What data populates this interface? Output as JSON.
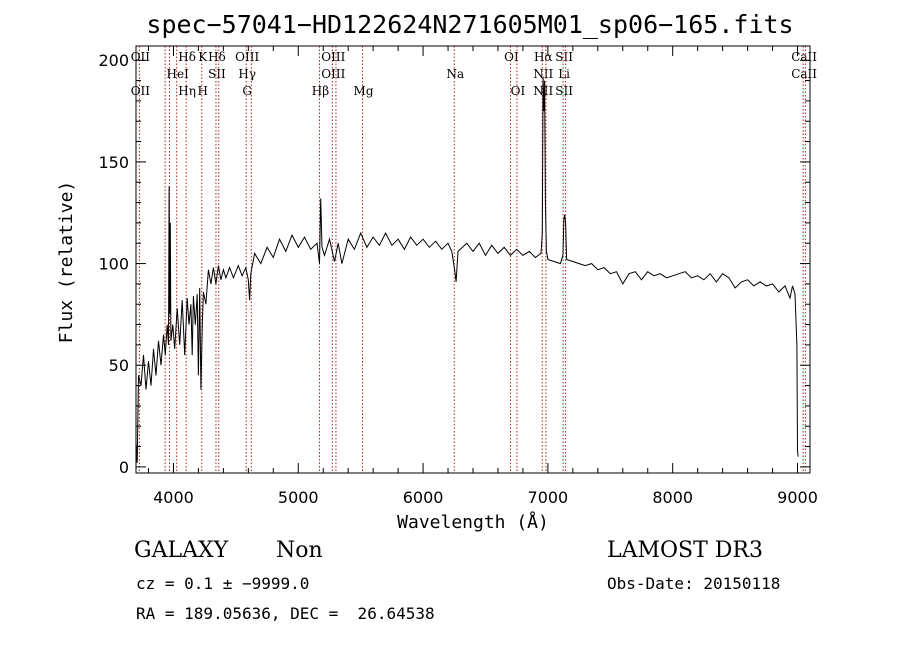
{
  "chart_data": {
    "type": "line",
    "title": "spec−57041−HD122624N271605M01_sp06−165.fits",
    "xlabel": "Wavelength (Å)",
    "ylabel": "Flux (relative)",
    "xlim": [
      3700,
      9100
    ],
    "ylim": [
      -3,
      207
    ],
    "xticks": [
      4000,
      5000,
      6000,
      7000,
      8000,
      9000
    ],
    "yticks": [
      0,
      50,
      100,
      150,
      200
    ],
    "grid": false,
    "series": [
      {
        "color": "#000000",
        "points": [
          [
            3700,
            12
          ],
          [
            3710,
            2
          ],
          [
            3720,
            45
          ],
          [
            3740,
            40
          ],
          [
            3760,
            55
          ],
          [
            3780,
            38
          ],
          [
            3800,
            52
          ],
          [
            3820,
            40
          ],
          [
            3840,
            58
          ],
          [
            3860,
            45
          ],
          [
            3880,
            62
          ],
          [
            3900,
            50
          ],
          [
            3920,
            65
          ],
          [
            3935,
            55
          ],
          [
            3950,
            70
          ],
          [
            3960,
            60
          ],
          [
            3965,
            138
          ],
          [
            3970,
            75
          ],
          [
            3975,
            120
          ],
          [
            3980,
            62
          ],
          [
            3995,
            70
          ],
          [
            4010,
            58
          ],
          [
            4030,
            78
          ],
          [
            4050,
            60
          ],
          [
            4070,
            82
          ],
          [
            4090,
            55
          ],
          [
            4110,
            83
          ],
          [
            4125,
            70
          ],
          [
            4140,
            80
          ],
          [
            4150,
            55
          ],
          [
            4160,
            84
          ],
          [
            4175,
            70
          ],
          [
            4190,
            85
          ],
          [
            4200,
            45
          ],
          [
            4210,
            88
          ],
          [
            4220,
            38
          ],
          [
            4232,
            72
          ],
          [
            4240,
            86
          ],
          [
            4260,
            80
          ],
          [
            4280,
            97
          ],
          [
            4300,
            90
          ],
          [
            4320,
            98
          ],
          [
            4340,
            90
          ],
          [
            4360,
            99
          ],
          [
            4380,
            92
          ],
          [
            4400,
            97
          ],
          [
            4420,
            93
          ],
          [
            4450,
            98
          ],
          [
            4480,
            93
          ],
          [
            4520,
            99
          ],
          [
            4550,
            94
          ],
          [
            4580,
            98
          ],
          [
            4600,
            92
          ],
          [
            4610,
            82
          ],
          [
            4620,
            95
          ],
          [
            4650,
            105
          ],
          [
            4700,
            100
          ],
          [
            4750,
            108
          ],
          [
            4800,
            103
          ],
          [
            4850,
            112
          ],
          [
            4900,
            106
          ],
          [
            4950,
            114
          ],
          [
            5000,
            108
          ],
          [
            5050,
            113
          ],
          [
            5100,
            107
          ],
          [
            5150,
            110
          ],
          [
            5170,
            100
          ],
          [
            5180,
            132
          ],
          [
            5190,
            108
          ],
          [
            5210,
            104
          ],
          [
            5250,
            112
          ],
          [
            5290,
            101
          ],
          [
            5320,
            110
          ],
          [
            5350,
            100
          ],
          [
            5400,
            112
          ],
          [
            5450,
            107
          ],
          [
            5500,
            115
          ],
          [
            5550,
            108
          ],
          [
            5600,
            113
          ],
          [
            5650,
            109
          ],
          [
            5700,
            115
          ],
          [
            5750,
            109
          ],
          [
            5800,
            112
          ],
          [
            5850,
            107
          ],
          [
            5900,
            113
          ],
          [
            5950,
            109
          ],
          [
            6000,
            112
          ],
          [
            6050,
            108
          ],
          [
            6100,
            111
          ],
          [
            6150,
            107
          ],
          [
            6200,
            110
          ],
          [
            6230,
            106
          ],
          [
            6255,
            96
          ],
          [
            6265,
            91
          ],
          [
            6280,
            106
          ],
          [
            6350,
            110
          ],
          [
            6400,
            106
          ],
          [
            6450,
            110
          ],
          [
            6500,
            104
          ],
          [
            6550,
            109
          ],
          [
            6600,
            105
          ],
          [
            6650,
            108
          ],
          [
            6700,
            104
          ],
          [
            6750,
            107
          ],
          [
            6800,
            104
          ],
          [
            6850,
            106
          ],
          [
            6900,
            103
          ],
          [
            6945,
            105
          ],
          [
            6955,
            115
          ],
          [
            6962,
            192
          ],
          [
            6968,
            175
          ],
          [
            6974,
            190
          ],
          [
            6980,
            130
          ],
          [
            6988,
            106
          ],
          [
            7000,
            102
          ],
          [
            7050,
            101
          ],
          [
            7100,
            100
          ],
          [
            7120,
            104
          ],
          [
            7128,
            122
          ],
          [
            7135,
            124
          ],
          [
            7142,
            120
          ],
          [
            7150,
            102
          ],
          [
            7200,
            101
          ],
          [
            7250,
            100
          ],
          [
            7300,
            99
          ],
          [
            7350,
            100
          ],
          [
            7400,
            97
          ],
          [
            7450,
            98
          ],
          [
            7500,
            95
          ],
          [
            7550,
            96
          ],
          [
            7600,
            90
          ],
          [
            7650,
            95
          ],
          [
            7700,
            96
          ],
          [
            7750,
            92
          ],
          [
            7800,
            96
          ],
          [
            7850,
            94
          ],
          [
            7900,
            95
          ],
          [
            7950,
            93
          ],
          [
            8000,
            94
          ],
          [
            8050,
            95
          ],
          [
            8100,
            96
          ],
          [
            8150,
            93
          ],
          [
            8200,
            94
          ],
          [
            8250,
            92
          ],
          [
            8300,
            95
          ],
          [
            8350,
            91
          ],
          [
            8400,
            95
          ],
          [
            8450,
            93
          ],
          [
            8500,
            88
          ],
          [
            8550,
            91
          ],
          [
            8600,
            92
          ],
          [
            8650,
            89
          ],
          [
            8700,
            91
          ],
          [
            8750,
            89
          ],
          [
            8800,
            90
          ],
          [
            8850,
            86
          ],
          [
            8900,
            89
          ],
          [
            8940,
            83
          ],
          [
            8960,
            89
          ],
          [
            8980,
            85
          ],
          [
            8995,
            60
          ],
          [
            9000,
            8
          ],
          [
            9005,
            5
          ]
        ]
      }
    ],
    "lines": [
      {
        "wl": 3727,
        "top": "OII",
        "mid": "",
        "bot": "OII"
      },
      {
        "wl": 3933.7,
        "top": "",
        "mid": "",
        "bot": ""
      },
      {
        "wl": 3968.5,
        "top": "",
        "mid": "",
        "bot": ""
      },
      {
        "wl": 4101.7,
        "top": "Hδ",
        "mid": "",
        "bot": "Hη"
      },
      {
        "wl": 4026,
        "top": "",
        "mid": "HeI",
        "bot": ""
      },
      {
        "wl": 4226.7,
        "top": "K",
        "mid": "",
        "bot": "H"
      },
      {
        "wl": 4340.5,
        "top": "Hδ",
        "mid": "SII",
        "bot": ""
      },
      {
        "wl": 4363,
        "top": "",
        "mid": "",
        "bot": ""
      },
      {
        "wl": 4583,
        "top": "OIII",
        "mid": "Hγ",
        "bot": "G"
      },
      {
        "wl": 4624,
        "top": "",
        "mid": "",
        "bot": ""
      },
      {
        "wl": 5170,
        "top": "",
        "mid": "",
        "bot": "Hβ"
      },
      {
        "wl": 5273,
        "top": "OIII",
        "mid": "OIII",
        "bot": ""
      },
      {
        "wl": 5302,
        "top": "",
        "mid": "",
        "bot": ""
      },
      {
        "wl": 5515,
        "top": "",
        "mid": "",
        "bot": "Mg"
      },
      {
        "wl": 6250,
        "top": "",
        "mid": "Na",
        "bot": ""
      },
      {
        "wl": 6700,
        "top": "OI",
        "mid": "",
        "bot": ""
      },
      {
        "wl": 6752,
        "top": "",
        "mid": "",
        "bot": "OI"
      },
      {
        "wl": 6955,
        "top": "Hα",
        "mid": "NII",
        "bot": "NII"
      },
      {
        "wl": 6984,
        "top": "",
        "mid": "",
        "bot": ""
      },
      {
        "wl": 7122,
        "top": "SII",
        "mid": "Li",
        "bot": "SII"
      },
      {
        "wl": 7142,
        "top": "",
        "mid": "",
        "bot": ""
      },
      {
        "wl": 9045,
        "top": "CaII",
        "mid": "CaII",
        "bot": ""
      },
      {
        "wl": 9063,
        "top": "",
        "mid": "",
        "bot": ""
      }
    ]
  },
  "info": {
    "object_class": "GALAXY",
    "subclass": "Non",
    "survey": "LAMOST DR3",
    "redshift": "cz = 0.1 ± −9999.0",
    "obs_date": "Obs-Date: 20150118",
    "coords": "RA = 189.05636, DEC =  26.64538"
  }
}
